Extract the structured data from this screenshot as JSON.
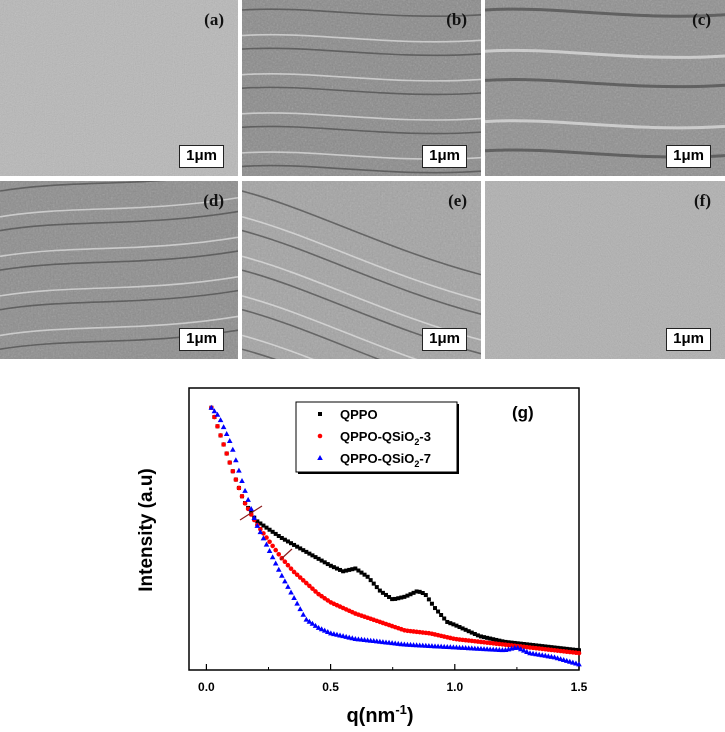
{
  "panels": [
    {
      "label": "(a)",
      "scale": "1μm",
      "tone": "#b8b8b8"
    },
    {
      "label": "(b)",
      "scale": "1μm",
      "tone": "#8a8a8a"
    },
    {
      "label": "(c)",
      "scale": "1μm",
      "tone": "#8f8f8f"
    },
    {
      "label": "(d)",
      "scale": "1μm",
      "tone": "#8c8c8c"
    },
    {
      "label": "(e)",
      "scale": "1μm",
      "tone": "#a3a3a3"
    },
    {
      "label": "(f)",
      "scale": "1μm",
      "tone": "#b0b0b0"
    }
  ],
  "chart_data": {
    "type": "scatter",
    "title": "(g)",
    "xlabel_base": "q(nm",
    "xlabel_sup": "-1",
    "xlabel_end": ")",
    "ylabel": "Intensity (a.u)",
    "xlim": [
      -0.07,
      1.5
    ],
    "ylim": [
      0,
      1
    ],
    "xticks": [
      0.0,
      0.5,
      1.0,
      1.5
    ],
    "xtick_labels": [
      "0.0",
      "0.5",
      "1.0",
      "1.5"
    ],
    "legend_position": "top-center",
    "series": [
      {
        "name": "QPPO",
        "name_base": "QPPO",
        "name_sub": "",
        "name_end": "",
        "marker": "square",
        "color": "#000000",
        "x": [
          0.02,
          0.05,
          0.1,
          0.15,
          0.2,
          0.3,
          0.4,
          0.5,
          0.55,
          0.6,
          0.65,
          0.7,
          0.75,
          0.8,
          0.85,
          0.88,
          0.92,
          0.97,
          1.0,
          1.1,
          1.2,
          1.3,
          1.4,
          1.5
        ],
        "y": [
          0.93,
          0.85,
          0.72,
          0.6,
          0.53,
          0.47,
          0.42,
          0.37,
          0.35,
          0.36,
          0.33,
          0.28,
          0.25,
          0.26,
          0.28,
          0.27,
          0.22,
          0.17,
          0.16,
          0.12,
          0.1,
          0.09,
          0.08,
          0.07
        ]
      },
      {
        "name": "QPPO-QSiO2-3",
        "name_base": "QPPO-QSiO",
        "name_sub": "2",
        "name_end": "-3",
        "marker": "circle",
        "color": "#ff0000",
        "x": [
          0.02,
          0.05,
          0.1,
          0.15,
          0.2,
          0.25,
          0.3,
          0.35,
          0.4,
          0.45,
          0.5,
          0.6,
          0.7,
          0.8,
          0.9,
          1.0,
          1.1,
          1.2,
          1.3,
          1.4,
          1.5
        ],
        "y": [
          0.93,
          0.85,
          0.72,
          0.6,
          0.52,
          0.46,
          0.4,
          0.35,
          0.31,
          0.27,
          0.24,
          0.2,
          0.17,
          0.14,
          0.13,
          0.11,
          0.1,
          0.09,
          0.08,
          0.07,
          0.06
        ]
      },
      {
        "name": "QPPO-QSiO2-7",
        "name_base": "QPPO-QSiO",
        "name_sub": "2",
        "name_end": "-7",
        "marker": "triangle",
        "color": "#0000ff",
        "x": [
          0.02,
          0.05,
          0.1,
          0.15,
          0.2,
          0.25,
          0.3,
          0.35,
          0.4,
          0.45,
          0.5,
          0.6,
          0.7,
          0.8,
          0.9,
          1.0,
          1.1,
          1.2,
          1.25,
          1.3,
          1.4,
          1.5
        ],
        "y": [
          0.93,
          0.9,
          0.8,
          0.65,
          0.52,
          0.43,
          0.34,
          0.26,
          0.18,
          0.15,
          0.13,
          0.11,
          0.1,
          0.09,
          0.085,
          0.08,
          0.075,
          0.07,
          0.08,
          0.06,
          0.045,
          0.02
        ]
      }
    ]
  }
}
